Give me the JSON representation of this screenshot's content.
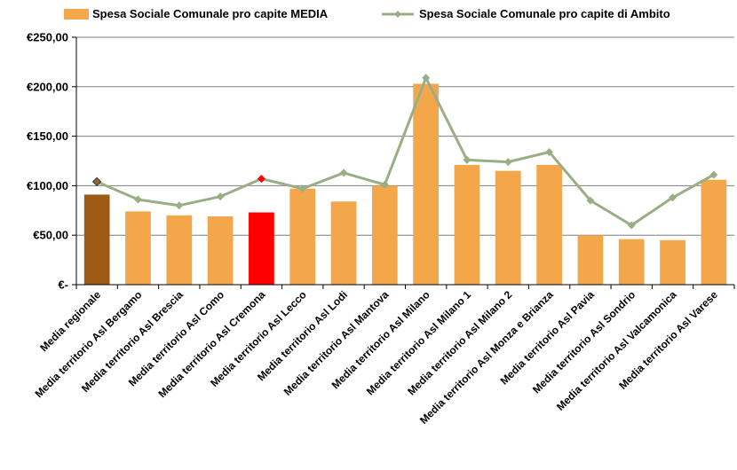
{
  "chart_data": {
    "type": "bar",
    "categories": [
      "Media regionale",
      "Media territorio Asl Bergamo",
      "Media territorio Asl Brescia",
      "Media territorio Asl Como",
      "Media territorio Asl Cremona",
      "Media territorio Asl Lecco",
      "Media territorio Asl Lodi",
      "Media territorio Asl Mantova",
      "Media territorio Asl Milano",
      "Media territorio Asl Milano 1",
      "Media territorio Asl Milano 2",
      "Media territorio Asl Monza e Brianza",
      "Media territorio Asl Pavia",
      "Media territorio Asl Sondrio",
      "Media territorio Asl Valcamonica",
      "Media territorio Asl Varese"
    ],
    "series": [
      {
        "name": "Spesa Sociale Comunale pro capite MEDIA",
        "kind": "bar",
        "color": "#F4A64B",
        "highlight_colors": {
          "0": "#9C5A14",
          "4": "#FF0000"
        },
        "values": [
          91,
          74,
          70,
          69,
          73,
          97,
          84,
          100,
          203,
          121,
          115,
          121,
          50,
          46,
          45,
          106
        ]
      },
      {
        "name": "Spesa Sociale Comunale pro capite di Ambito",
        "kind": "line",
        "color": "#9AAE86",
        "marker_highlight_colors": {
          "0": "#8C6A2E",
          "4": "#FF0000"
        },
        "values": [
          104,
          86,
          80,
          89,
          107,
          97,
          113,
          101,
          209,
          126,
          124,
          134,
          85,
          60,
          88,
          111
        ]
      }
    ],
    "y_ticks": [
      "€-",
      "€50,00",
      "€100,00",
      "€150,00",
      "€200,00",
      "€250,00"
    ],
    "y_tick_values": [
      0,
      50,
      100,
      150,
      200,
      250
    ],
    "ylim": [
      0,
      250
    ],
    "grid": true,
    "legend_position": "top"
  }
}
